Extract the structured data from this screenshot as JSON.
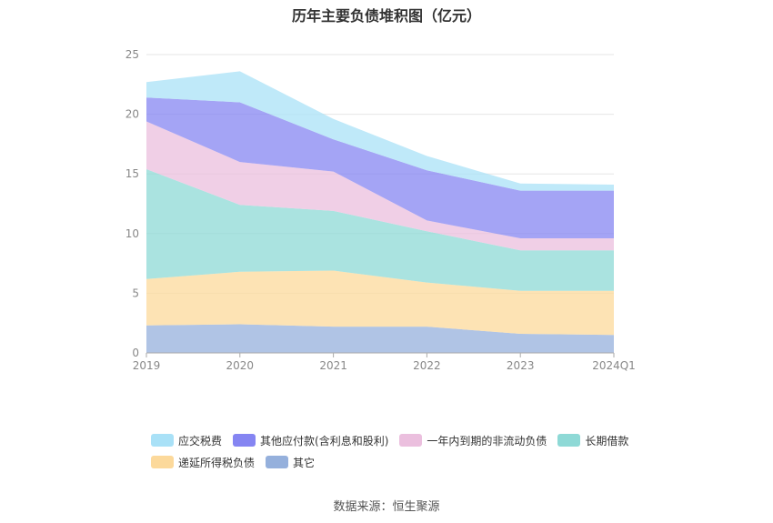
{
  "title": "历年主要负债堆积图（亿元）",
  "source": "数据来源：恒生聚源",
  "chart_data": {
    "type": "area",
    "stacked": true,
    "categories": [
      "2019",
      "2020",
      "2021",
      "2022",
      "2023",
      "2024Q1"
    ],
    "ylim": [
      0,
      25
    ],
    "yticks": [
      "0",
      "5",
      "10",
      "15",
      "20",
      "25"
    ],
    "grid": true,
    "legend_position": "bottom",
    "series": [
      {
        "name": "其它",
        "color": "#95b0dc",
        "values": [
          2.3,
          2.4,
          2.2,
          2.2,
          1.6,
          1.5
        ]
      },
      {
        "name": "递延所得税负债",
        "color": "#fcd99b",
        "values": [
          3.9,
          4.4,
          4.7,
          3.7,
          3.6,
          3.7
        ]
      },
      {
        "name": "长期借款",
        "color": "#8ed9d6",
        "values": [
          9.2,
          5.6,
          5.0,
          4.3,
          3.4,
          3.4
        ]
      },
      {
        "name": "一年内到期的非流动负债",
        "color": "#ebbfde",
        "values": [
          4.0,
          3.6,
          3.3,
          0.9,
          1.0,
          1.0
        ]
      },
      {
        "name": "其他应付款(含利息和股利)",
        "color": "#8585f2",
        "values": [
          2.0,
          5.0,
          2.7,
          4.2,
          4.0,
          4.0
        ]
      },
      {
        "name": "应交税费",
        "color": "#a9e1f7",
        "values": [
          1.3,
          2.6,
          1.7,
          1.2,
          0.6,
          0.5
        ]
      }
    ],
    "legend_order": [
      "应交税费",
      "其他应付款(含利息和股利)",
      "一年内到期的非流动负债",
      "长期借款",
      "递延所得税负债",
      "其它"
    ]
  }
}
